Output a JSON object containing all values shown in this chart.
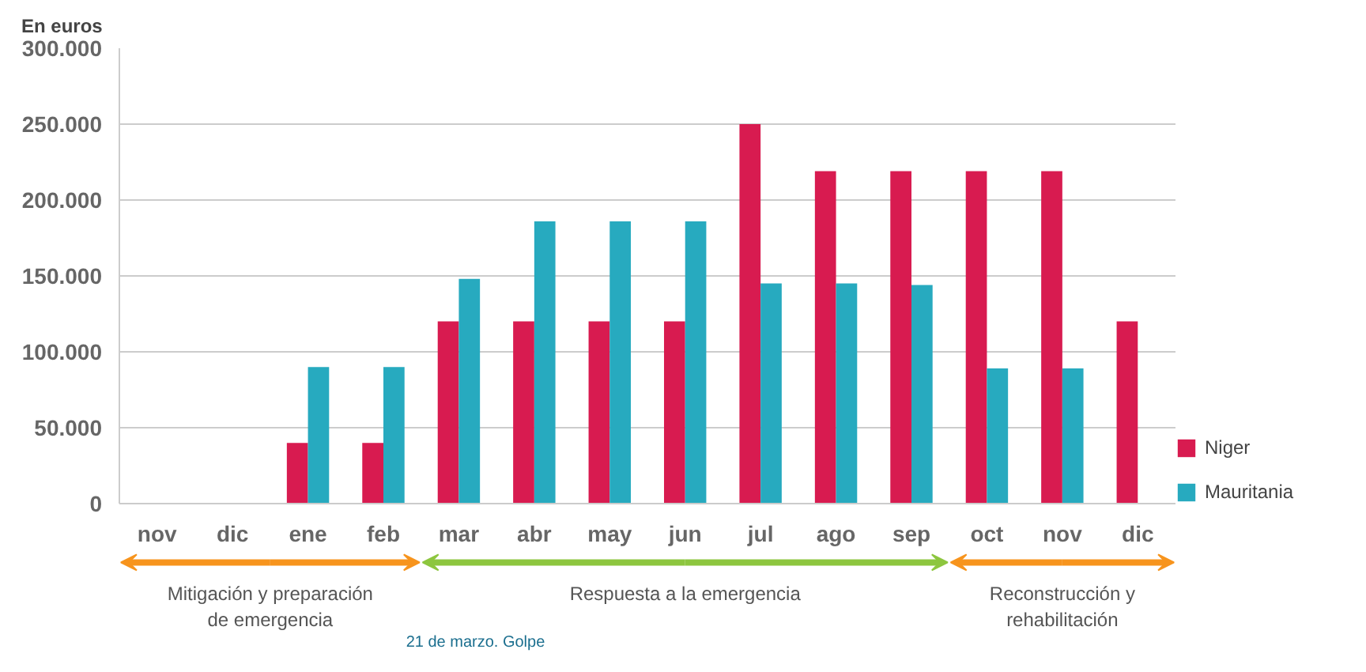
{
  "chart_data": {
    "type": "bar",
    "ylabel": "En euros",
    "categories": [
      "nov",
      "dic",
      "ene",
      "feb",
      "mar",
      "abr",
      "may",
      "jun",
      "jul",
      "ago",
      "sep",
      "oct",
      "nov",
      "dic"
    ],
    "series": [
      {
        "name": "Niger",
        "color": "#d81b50",
        "values": [
          null,
          null,
          40000,
          40000,
          120000,
          120000,
          120000,
          120000,
          250000,
          219000,
          219000,
          219000,
          219000,
          120000
        ]
      },
      {
        "name": "Mauritania",
        "color": "#27aabf",
        "values": [
          null,
          null,
          90000,
          90000,
          148000,
          186000,
          186000,
          186000,
          145000,
          145000,
          144000,
          89000,
          89000,
          null
        ]
      }
    ],
    "ylim": [
      0,
      300000
    ],
    "yticks": [
      {
        "value": 0,
        "label": "0"
      },
      {
        "value": 50000,
        "label": "50.000"
      },
      {
        "value": 100000,
        "label": "100.000"
      },
      {
        "value": 150000,
        "label": "150.000"
      },
      {
        "value": 200000,
        "label": "200.000"
      },
      {
        "value": 250000,
        "label": "250.000"
      },
      {
        "value": 300000,
        "label": "300.000"
      }
    ],
    "grid": "y",
    "legend": "bottom right",
    "annotations": [
      "Mitigación y preparación\nde emergencia",
      "Respuesta a la emergencia",
      "Reconstrucción y\nrehabilitación",
      "21 de marzo. Golpe"
    ]
  }
}
